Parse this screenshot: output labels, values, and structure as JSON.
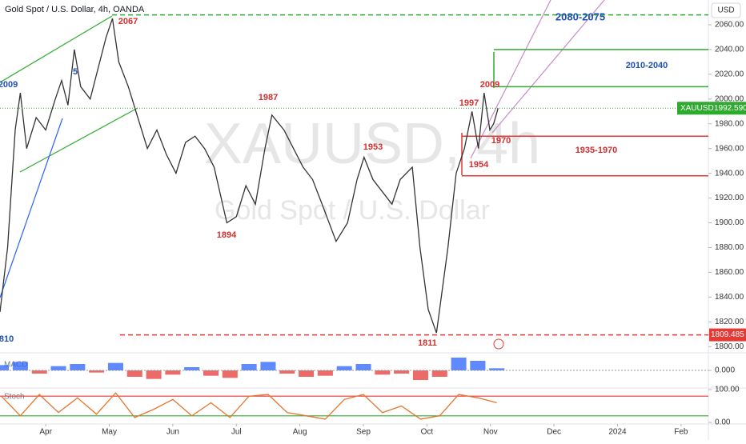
{
  "chart_data": [
    {
      "type": "line",
      "title": "Gold Spot / U.S. Dollar, 4h, OANDA",
      "currency": "USD",
      "watermark": "XAUUSD, 4h",
      "watermark_sub": "Gold Spot / U.S. Dollar",
      "symbol": "XAUUSD",
      "last_label": "1992.590",
      "color": "#333333",
      "xlim": [
        -0.72,
        10.43
      ],
      "xticks": [
        {
          "value": 0,
          "label": "Apr"
        },
        {
          "value": 1,
          "label": "May"
        },
        {
          "value": 2,
          "label": "Jun"
        },
        {
          "value": 3,
          "label": "Jul"
        },
        {
          "value": 4,
          "label": "Aug"
        },
        {
          "value": 5,
          "label": "Sep"
        },
        {
          "value": 6,
          "label": "Oct"
        },
        {
          "value": 7,
          "label": "Nov"
        },
        {
          "value": 8,
          "label": "Dec"
        },
        {
          "value": 9,
          "label": "2024"
        },
        {
          "value": 10,
          "label": "Feb"
        }
      ],
      "ylim": [
        1795,
        2080
      ],
      "yticks": [
        {
          "value": 1800,
          "label": "1800.00"
        },
        {
          "value": 1820,
          "label": "1820.00"
        },
        {
          "value": 1840,
          "label": "1840.00"
        },
        {
          "value": 1860,
          "label": "1860.00"
        },
        {
          "value": 1880,
          "label": "1880.00"
        },
        {
          "value": 1900,
          "label": "1900.00"
        },
        {
          "value": 1920,
          "label": "1920.00"
        },
        {
          "value": 1940,
          "label": "1940.00"
        },
        {
          "value": 1960,
          "label": "1960.00"
        },
        {
          "value": 1980,
          "label": "1980.00"
        },
        {
          "value": 2000,
          "label": "2000.00"
        },
        {
          "value": 2020,
          "label": "2020.00"
        },
        {
          "value": 2040,
          "label": "2040.00"
        },
        {
          "value": 2060,
          "label": "2060.00"
        }
      ],
      "series": [
        {
          "name": "XAUUSD",
          "color": "#333333",
          "x": [
            -0.72,
            -0.6,
            -0.48,
            -0.4,
            -0.3,
            -0.15,
            0,
            0.15,
            0.25,
            0.35,
            0.45,
            0.55,
            0.7,
            0.85,
            0.95,
            1.05,
            1.15,
            1.3,
            1.45,
            1.6,
            1.75,
            1.9,
            2.05,
            2.2,
            2.35,
            2.5,
            2.65,
            2.85,
            3.0,
            3.15,
            3.3,
            3.45,
            3.56,
            3.75,
            3.9,
            4.05,
            4.2,
            4.35,
            4.57,
            4.75,
            4.9,
            5.01,
            5.15,
            5.3,
            5.45,
            5.58,
            5.77,
            5.89,
            6.02,
            6.15,
            6.33,
            6.46,
            6.59,
            6.71,
            6.81,
            6.9,
            6.99,
            7.05,
            7.12
          ],
          "values": [
            1828,
            1880,
            1975,
            2005,
            1960,
            1985,
            1975,
            2000,
            2015,
            1995,
            2040,
            2010,
            2000,
            2030,
            2050,
            2065,
            2030,
            2010,
            1985,
            1960,
            1975,
            1955,
            1940,
            1965,
            1970,
            1960,
            1945,
            1900,
            1905,
            1930,
            1915,
            1960,
            1987,
            1975,
            1960,
            1945,
            1935,
            1915,
            1885,
            1900,
            1935,
            1953,
            1935,
            1925,
            1915,
            1935,
            1945,
            1880,
            1830,
            1811,
            1880,
            1940,
            1960,
            1990,
            1960,
            2005,
            1975,
            1980,
            1992.59
          ]
        }
      ],
      "levels": [
        {
          "value": 2068,
          "color": "#2eab2e"
        },
        {
          "value": 2040,
          "color": "#2eab2e"
        },
        {
          "value": 2010,
          "color": "#2eab2e"
        },
        {
          "value": 1970,
          "color": "#e53935"
        },
        {
          "value": 1938,
          "color": "#e53935"
        },
        {
          "value": 1809.485,
          "label": "1809.485",
          "color": "#e53935"
        }
      ],
      "annotations": [
        {
          "text": "2067",
          "color": "#d32f2f"
        },
        {
          "text": "1987",
          "color": "#d32f2f"
        },
        {
          "text": "1894",
          "color": "#d32f2f"
        },
        {
          "text": "1953",
          "color": "#d32f2f"
        },
        {
          "text": "1811",
          "color": "#d32f2f"
        },
        {
          "text": "1997",
          "color": "#d32f2f"
        },
        {
          "text": "2009",
          "color": "#d32f2f"
        },
        {
          "text": "1970",
          "color": "#d32f2f"
        },
        {
          "text": "1954",
          "color": "#d32f2f"
        },
        {
          "text": "1935-1970",
          "color": "#d32f2f"
        },
        {
          "text": "2010-2040",
          "color": "#1e50b4"
        },
        {
          "text": "2080-2075",
          "color": "#1e50b4"
        },
        {
          "text": "810",
          "color": "#1e50b4"
        },
        {
          "text": "2009",
          "color": "#1e50b4"
        },
        {
          "text": "5",
          "color": "#1e50b4"
        }
      ]
    },
    {
      "type": "bar",
      "title": "MACD",
      "ylim": [
        -15,
        15
      ],
      "yticks": [
        {
          "value": 0,
          "label": "0.000"
        }
      ],
      "color": "#2962ff",
      "x": [
        -0.7,
        -0.4,
        -0.1,
        0.2,
        0.5,
        0.8,
        1.1,
        1.4,
        1.7,
        2.0,
        2.3,
        2.6,
        2.9,
        3.2,
        3.5,
        3.8,
        4.1,
        4.4,
        4.7,
        5.0,
        5.3,
        5.6,
        5.9,
        6.2,
        6.5,
        6.8,
        7.1
      ],
      "values": [
        5,
        8,
        -3,
        4,
        6,
        -2,
        7,
        -6,
        -8,
        -4,
        3,
        -5,
        -7,
        6,
        8,
        -3,
        -6,
        -5,
        4,
        6,
        -4,
        -3,
        -9,
        -6,
        12,
        9,
        2
      ]
    },
    {
      "type": "line",
      "title": "Stoch",
      "ylim": [
        0,
        100
      ],
      "yticks": [
        {
          "value": 0,
          "label": "0.00"
        },
        {
          "value": 100,
          "label": "100.00"
        }
      ],
      "color": "#e8742c",
      "levels": [
        {
          "value": 80,
          "color": "#e53935"
        },
        {
          "value": 20,
          "color": "#2eab2e"
        }
      ],
      "x": [
        -0.7,
        -0.4,
        -0.1,
        0.2,
        0.5,
        0.8,
        1.1,
        1.4,
        1.7,
        2.0,
        2.3,
        2.6,
        2.9,
        3.2,
        3.5,
        3.8,
        4.1,
        4.4,
        4.7,
        5.0,
        5.3,
        5.6,
        5.9,
        6.2,
        6.5,
        6.8,
        7.1
      ],
      "values": [
        80,
        20,
        85,
        30,
        75,
        25,
        90,
        15,
        40,
        70,
        20,
        60,
        15,
        80,
        85,
        30,
        20,
        10,
        70,
        85,
        30,
        50,
        10,
        20,
        85,
        75,
        60
      ]
    }
  ]
}
